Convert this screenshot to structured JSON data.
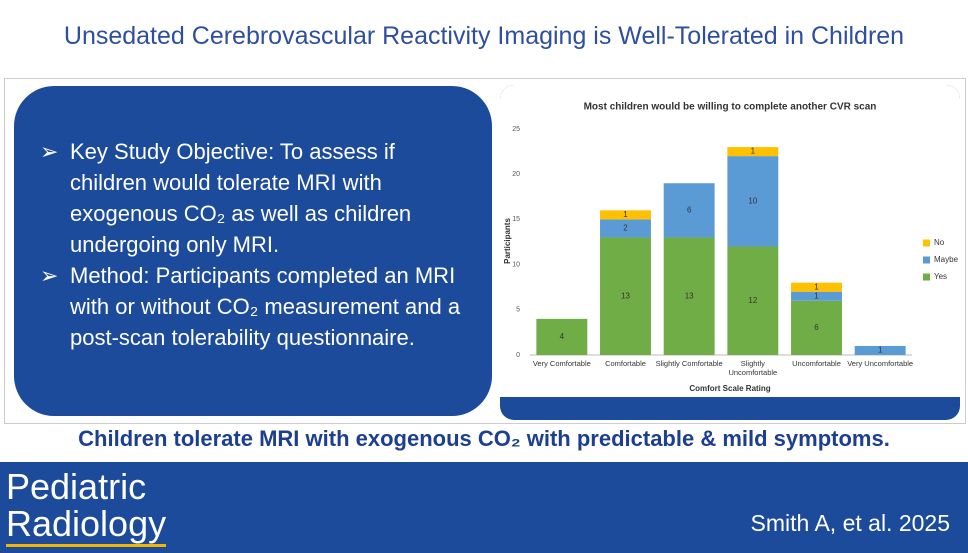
{
  "title": "Unsedated Cerebrovascular Reactivity Imaging is Well-Tolerated in Children",
  "bullets": [
    "Key Study Objective: To assess if children would tolerate MRI with exogenous CO₂ as well as children undergoing only MRI.",
    "Method: Participants completed an MRI with or without CO₂ measurement and a post-scan tolerability questionnaire."
  ],
  "chart_data": {
    "type": "stacked_bar",
    "title": "Most children would be willing to complete another CVR scan",
    "x_label": "Comfort Scale Rating",
    "y_label": "Participants",
    "categories": [
      "Very Comfortable",
      "Comfortable",
      "Slightly Comfortable",
      "Slightly Uncomfortable",
      "Uncomfortable",
      "Very Uncomfortable"
    ],
    "series": [
      {
        "name": "Yes",
        "color": "#70ad47",
        "values": [
          4,
          13,
          13,
          12,
          6,
          0
        ]
      },
      {
        "name": "Maybe",
        "color": "#5b9bd5",
        "values": [
          0,
          2,
          6,
          10,
          1,
          1
        ]
      },
      {
        "name": "No",
        "color": "#ffc000",
        "values": [
          0,
          1,
          0,
          1,
          1,
          0
        ]
      }
    ],
    "ylim": [
      0,
      25
    ],
    "yticks": [
      0,
      5,
      10,
      15,
      20,
      25
    ],
    "grid": false,
    "legend": "right"
  },
  "conclusion": "Children tolerate MRI with exogenous CO₂ with predictable & mild symptoms.",
  "journal": [
    "Pediatric",
    "Radiology"
  ],
  "citation": "Smith A, et al. 2025"
}
